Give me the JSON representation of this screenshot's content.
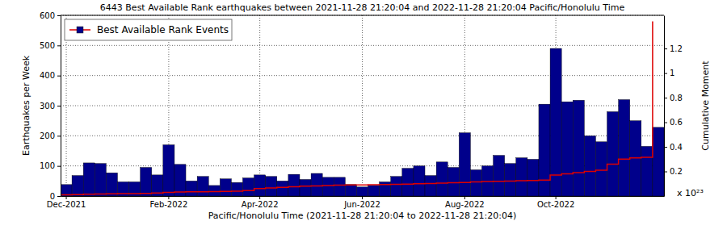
{
  "chart_data": {
    "type": "bar",
    "title": "6443 Best Available Rank earthquakes between 2021-11-28 21:20:04 and 2022-11-28 21:20:04 Pacific/Honolulu Time",
    "x_label": "Pacific/Honolulu Time (2021-11-28 21:20:04 to 2022-11-28 21:20:04)",
    "y_label": "Earthquakes per Week",
    "y2_label": "Cumulative Moment",
    "annotations": [
      "x 10²³"
    ],
    "categories": [
      "Dec-2021",
      null,
      null,
      null,
      null,
      null,
      null,
      null,
      null,
      "Feb-2022",
      null,
      null,
      null,
      null,
      null,
      null,
      null,
      "Apr-2022",
      null,
      null,
      null,
      null,
      null,
      null,
      null,
      null,
      "Jun-2022",
      null,
      null,
      null,
      null,
      null,
      null,
      null,
      null,
      "Aug-2022",
      null,
      null,
      null,
      null,
      null,
      null,
      null,
      "Oct-2022",
      null,
      null,
      null,
      null,
      null,
      null,
      null,
      null,
      null
    ],
    "series": [
      {
        "name": "Best Available Rank Events",
        "type": "bar",
        "color": "#00008b",
        "values": [
          38,
          68,
          110,
          108,
          77,
          47,
          47,
          95,
          70,
          170,
          105,
          50,
          65,
          35,
          57,
          45,
          60,
          70,
          65,
          50,
          72,
          55,
          75,
          62,
          62,
          38,
          30,
          35,
          47,
          65,
          92,
          100,
          68,
          113,
          95,
          210,
          87,
          100,
          135,
          108,
          127,
          122,
          305,
          490,
          313,
          318,
          200,
          180,
          280,
          320,
          250,
          165,
          228
        ]
      },
      {
        "type": "line",
        "axis": "y2",
        "color": "#dd0000",
        "line_style": "solid",
        "values": [
          0.01,
          0.012,
          0.015,
          0.017,
          0.018,
          0.019,
          0.02,
          0.022,
          0.025,
          0.03,
          0.032,
          0.034,
          0.035,
          0.036,
          0.038,
          0.04,
          0.045,
          0.06,
          0.065,
          0.07,
          0.075,
          0.08,
          0.082,
          0.085,
          0.088,
          0.09,
          0.09,
          0.092,
          0.093,
          0.095,
          0.097,
          0.1,
          0.102,
          0.105,
          0.108,
          0.11,
          0.115,
          0.118,
          0.12,
          0.122,
          0.125,
          0.127,
          0.13,
          0.17,
          0.18,
          0.19,
          0.2,
          0.21,
          0.26,
          0.3,
          0.31,
          0.315,
          1.42
        ]
      }
    ],
    "ylim": [
      0,
      600
    ],
    "yticks": [
      0,
      100,
      200,
      300,
      400,
      500,
      600
    ],
    "y2lim": [
      0,
      1.47
    ],
    "y2ticks": [
      0.2,
      0.4,
      0.6,
      0.8,
      1,
      1.2
    ],
    "grid": true,
    "legend": "upper left"
  }
}
